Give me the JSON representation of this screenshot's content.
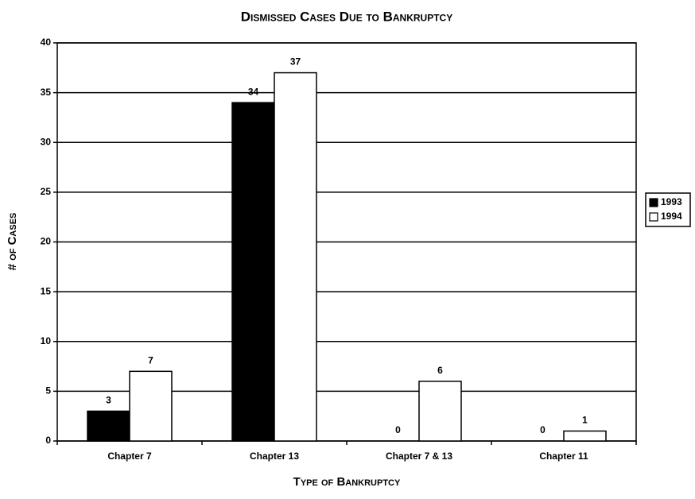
{
  "chart_data": {
    "type": "bar",
    "title": "Dismissed Cases Due to Bankruptcy",
    "xlabel": "Type of Bankruptcy",
    "ylabel": "# of Cases",
    "categories": [
      "Chapter 7",
      "Chapter 13",
      "Chapter 7 & 13",
      "Chapter 11"
    ],
    "series": [
      {
        "name": "1993",
        "color": "#000000",
        "values": [
          3,
          34,
          0,
          0
        ]
      },
      {
        "name": "1994",
        "color": "#ffffff",
        "values": [
          7,
          37,
          6,
          1
        ]
      }
    ],
    "ylim": [
      0,
      40
    ],
    "yticks": [
      0,
      5,
      10,
      15,
      20,
      25,
      30,
      35,
      40
    ],
    "grid": true,
    "legend": "right"
  }
}
